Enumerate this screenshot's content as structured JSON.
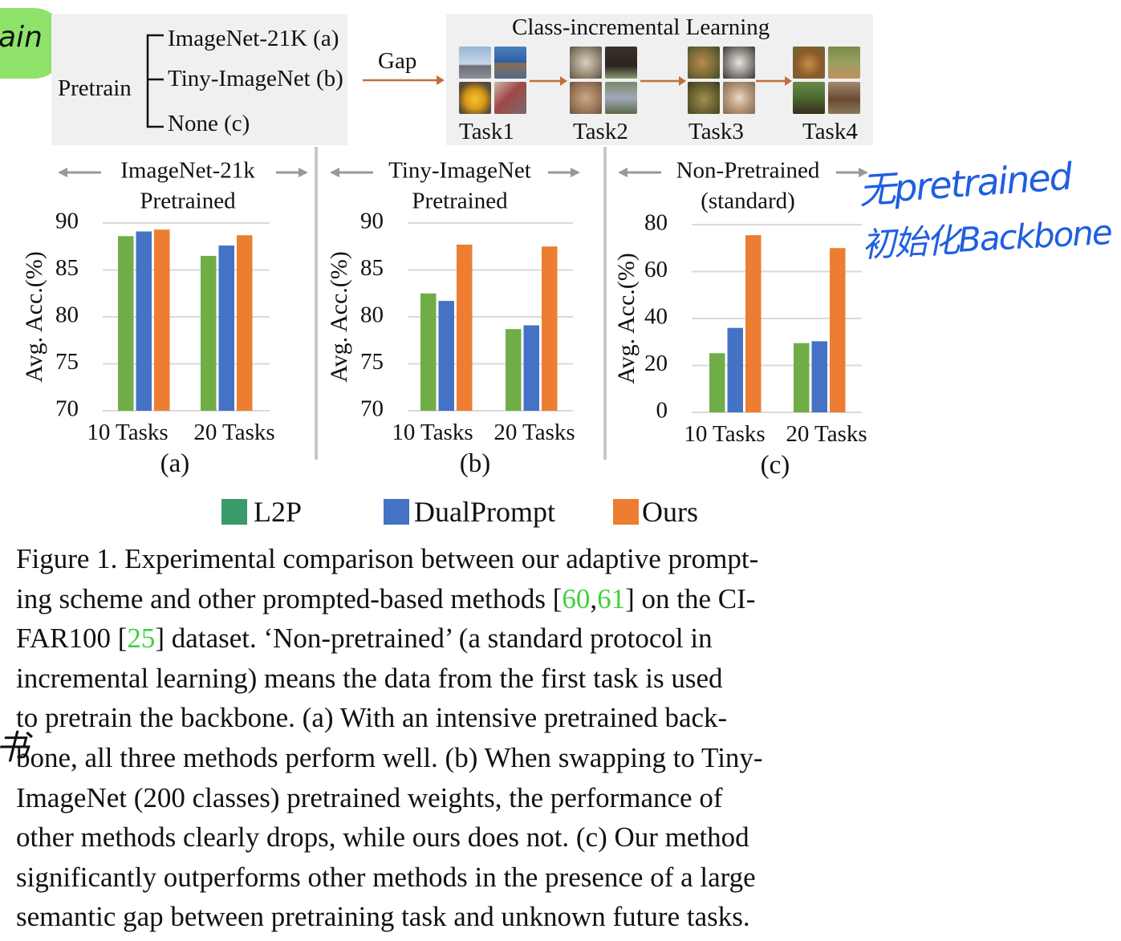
{
  "top_left": {
    "pretrain_label": "Pretrain",
    "options": [
      "ImageNet-21K (a)",
      "Tiny-ImageNet (b)",
      "None (c)"
    ],
    "gap_label": "Gap"
  },
  "top_right": {
    "title": "Class-incremental Learning",
    "tasks": [
      "Task1",
      "Task2",
      "Task3",
      "Task4"
    ]
  },
  "annotation_badge": "ain",
  "handwriting": {
    "line1": "无pretrained",
    "line2": "初始化Backbone",
    "margin_mark": "书"
  },
  "colors": {
    "l2p": "#70ad47",
    "dualprompt": "#4472c4",
    "ours": "#ed7d31",
    "legend_l2p": "#3a9a6a",
    "cite": "#3fd13f",
    "ink": "#1f5fe0",
    "badge": "#8fe36a"
  },
  "chart_data": [
    {
      "type": "bar",
      "title_line1": "ImageNet-21k",
      "title_line2": "Pretrained",
      "ylabel": "Avg. Acc.(%)",
      "ylim": [
        70,
        90
      ],
      "yticks": [
        "70",
        "75",
        "80",
        "85",
        "90"
      ],
      "categories": [
        "10 Tasks",
        "20 Tasks"
      ],
      "series": [
        {
          "name": "L2P",
          "values": [
            88.6,
            86.5
          ]
        },
        {
          "name": "DualPrompt",
          "values": [
            89.1,
            87.6
          ]
        },
        {
          "name": "Ours",
          "values": [
            89.3,
            88.7
          ]
        }
      ],
      "sublabel": "(a)"
    },
    {
      "type": "bar",
      "title_line1": "Tiny-ImageNet",
      "title_line2": "Pretrained",
      "ylabel": "Avg. Acc.(%)",
      "ylim": [
        70,
        90
      ],
      "yticks": [
        "70",
        "75",
        "80",
        "85",
        "90"
      ],
      "categories": [
        "10 Tasks",
        "20 Tasks"
      ],
      "series": [
        {
          "name": "L2P",
          "values": [
            82.5,
            78.7
          ]
        },
        {
          "name": "DualPrompt",
          "values": [
            81.7,
            79.1
          ]
        },
        {
          "name": "Ours",
          "values": [
            87.7,
            87.5
          ]
        }
      ],
      "sublabel": "(b)"
    },
    {
      "type": "bar",
      "title_line1": "Non-Pretrained",
      "title_line2": "(standard)",
      "ylabel": "Avg. Acc.(%)",
      "ylim": [
        0,
        80
      ],
      "yticks": [
        "0",
        "20",
        "40",
        "60",
        "80"
      ],
      "categories": [
        "10 Tasks",
        "20 Tasks"
      ],
      "series": [
        {
          "name": "L2P",
          "values": [
            25.2,
            29.5
          ]
        },
        {
          "name": "DualPrompt",
          "values": [
            36.0,
            30.3
          ]
        },
        {
          "name": "Ours",
          "values": [
            75.5,
            70.0
          ]
        }
      ],
      "sublabel": "(c)"
    }
  ],
  "legend": [
    "L2P",
    "DualPrompt",
    "Ours"
  ],
  "caption": {
    "l1": "Figure 1.  Experimental comparison between our adaptive prompt-",
    "l2a": "ing scheme and other prompted-based methods [",
    "cite1": "60",
    "l2b": ",",
    "cite2": "61",
    "l2c": "] on the CI-",
    "l3a": "FAR100 [",
    "cite3": "25",
    "l3b": "] dataset.  ‘Non-pretrained’ (a standard protocol in",
    "l4": "incremental learning) means the data from the first task is used",
    "l5": "to pretrain the backbone.  (a) With an intensive pretrained back-",
    "l6": "bone, all three methods perform well. (b) When swapping to Tiny-",
    "l7": "ImageNet (200 classes) pretrained weights, the performance of",
    "l8": "other methods clearly drops, while ours does not. (c) Our method",
    "l9": "significantly outperforms other methods in the presence of a large",
    "l10": "semantic gap between pretraining task and unknown future tasks."
  }
}
